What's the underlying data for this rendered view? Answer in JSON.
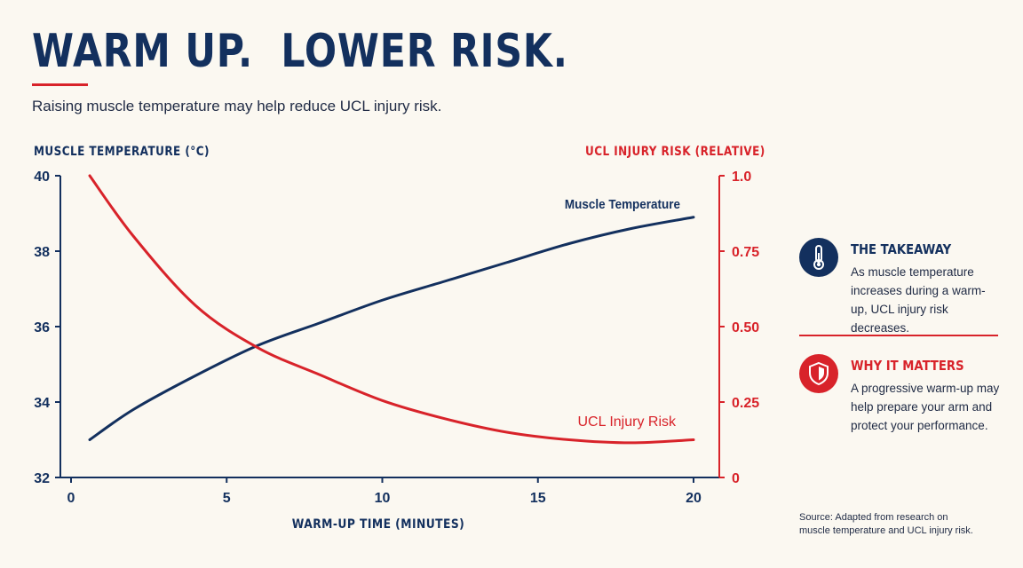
{
  "header": {
    "title": "WARM UP.  LOWER RISK.",
    "subtitle": "Raising muscle temperature may help reduce UCL injury risk."
  },
  "colors": {
    "navy": "#13305e",
    "red": "#d8232a",
    "background": "#fbf8f1"
  },
  "chart_data": {
    "type": "line",
    "xlabel": "WARM-UP TIME (MINUTES)",
    "ylabel_left": "MUSCLE TEMPERATURE (°C)",
    "ylabel_right": "UCL INJURY RISK (RELATIVE)",
    "xlim": [
      0,
      20.5
    ],
    "x_ticks": [
      0,
      5,
      10,
      15,
      20
    ],
    "y_left_lim": [
      32,
      40
    ],
    "y_left_ticks": [
      "32",
      "34",
      "36",
      "38",
      "40"
    ],
    "y_right_lim": [
      0,
      1.0
    ],
    "y_right_ticks": [
      "0",
      "0.25",
      "0.50",
      "0.75",
      "1.0"
    ],
    "grid": false,
    "series": [
      {
        "name": "Muscle Temperature",
        "axis": "left",
        "color": "#13305e",
        "x": [
          0.6,
          2,
          4,
          6,
          8,
          10,
          12,
          14,
          16,
          18,
          20
        ],
        "y": [
          33.0,
          33.8,
          34.7,
          35.5,
          36.1,
          36.7,
          37.2,
          37.7,
          38.2,
          38.6,
          38.9
        ]
      },
      {
        "name": "UCL Injury Risk",
        "axis": "right",
        "color": "#d8232a",
        "x": [
          0.6,
          2,
          4,
          6,
          8,
          10,
          12,
          14,
          16,
          18,
          20
        ],
        "y": [
          1.0,
          0.8,
          0.57,
          0.43,
          0.34,
          0.255,
          0.195,
          0.15,
          0.125,
          0.115,
          0.125
        ]
      }
    ]
  },
  "takeaway": {
    "icon": "thermometer-icon",
    "title": "THE TAKEAWAY",
    "text": "As muscle temperature increases during a warm-up, UCL injury risk decreases."
  },
  "why": {
    "icon": "shield-icon",
    "title": "WHY IT MATTERS",
    "text": "A progressive warm-up may help prepare your arm and protect your performance."
  },
  "source": {
    "line1": "Source: Adapted from research on",
    "line2": "muscle temperature and UCL injury risk."
  }
}
